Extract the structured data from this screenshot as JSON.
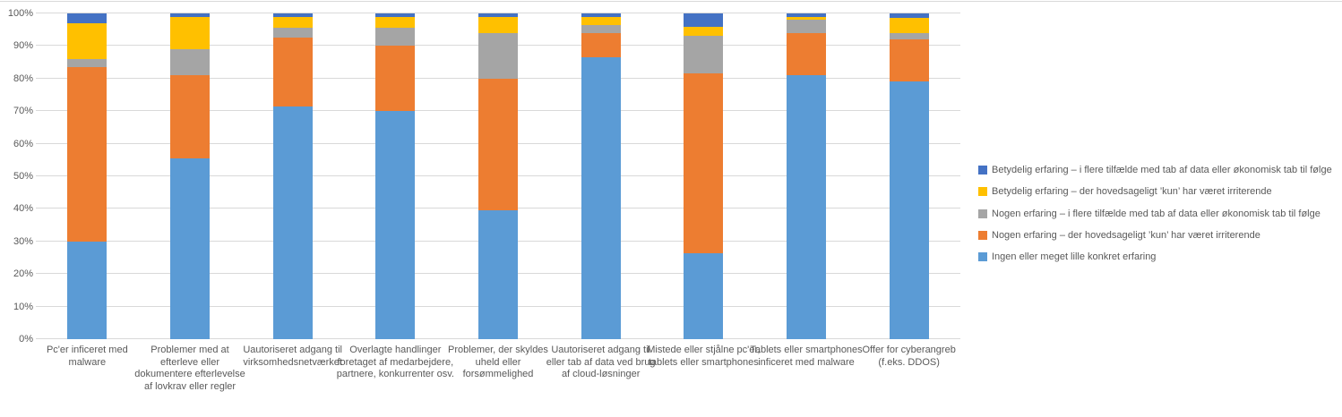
{
  "colors": {
    "background": "#ffffff",
    "grid": "#d9d9d9",
    "text": "#595959"
  },
  "chart_data": {
    "type": "bar",
    "stacked": true,
    "percent_stacked": true,
    "title": "",
    "xlabel": "",
    "ylabel": "",
    "ylim": [
      0,
      100
    ],
    "grid": true,
    "legend_position": "right",
    "yticks": [
      "0%",
      "10%",
      "20%",
      "30%",
      "40%",
      "50%",
      "60%",
      "70%",
      "80%",
      "90%",
      "100%"
    ],
    "categories": [
      "Pc'er inficeret med malware",
      "Problemer med at efterleve eller dokumentere efterlevelse af lovkrav eller regler",
      "Uautoriseret adgang til virksomhedsnetværket",
      "Overlagte handlinger foretaget af medarbejdere, partnere, konkurrenter osv.",
      "Problemer, der skyldes uheld eller forsømmelighed",
      "Uautoriseret adgang til eller tab af data ved brug af cloud-løsninger",
      "Mistede eller stjålne pc'er, tablets eller smartphones",
      "Tablets eller smartphones inficeret med malware",
      "Offer for cyberangreb (f.eks. DDOS)"
    ],
    "series": [
      {
        "name": "Betydelig erfaring – i flere tilfælde med tab af data eller økonomisk tab til følge",
        "color": "#4472c4",
        "values": [
          3,
          1,
          1,
          1,
          1,
          1,
          4,
          1,
          1.5
        ]
      },
      {
        "name": "Betydelig erfaring – der hovedsageligt ’kun’ har været irriterende",
        "color": "#ffc000",
        "values": [
          11,
          10,
          3.5,
          3.5,
          5,
          2.5,
          3,
          1,
          4.5
        ]
      },
      {
        "name": "Nogen erfaring – i flere tilfælde med tab af data eller økonomisk tab til følge",
        "color": "#a5a5a5",
        "values": [
          2.5,
          8,
          3,
          5.5,
          14,
          2.5,
          11.5,
          4,
          2
        ]
      },
      {
        "name": "Nogen erfaring – der hovedsageligt ’kun’ har været irriterende",
        "color": "#ed7d31",
        "values": [
          53.5,
          25.5,
          21,
          20,
          40.5,
          7.5,
          55,
          13,
          13
        ]
      },
      {
        "name": "Ingen eller meget lille konkret erfaring",
        "color": "#5b9bd5",
        "values": [
          30,
          55.5,
          71.5,
          70,
          39.5,
          86.5,
          26.5,
          81,
          79
        ]
      }
    ],
    "stacking_note": "series stacked bottom-to-top in reverse of legend order"
  }
}
